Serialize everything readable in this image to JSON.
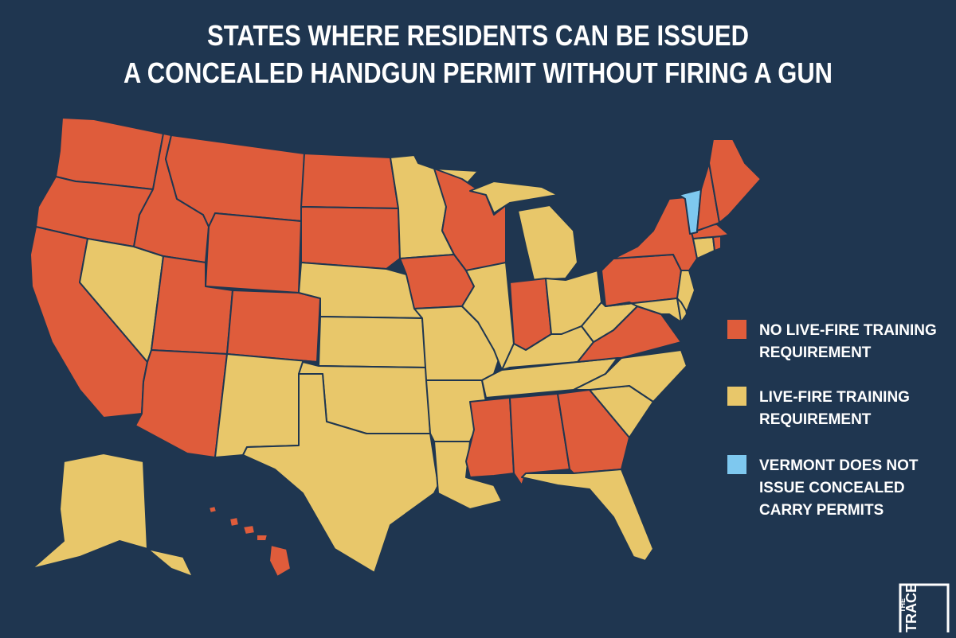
{
  "title": {
    "lines": [
      "STATES WHERE RESIDENTS CAN BE ISSUED",
      "A CONCEALED HANDGUN PERMIT WITHOUT FIRING A GUN"
    ]
  },
  "legend": {
    "items": [
      {
        "color": "#df5c3b",
        "label_lines": [
          "NO LIVE-FIRE TRAINING",
          "REQUIREMENT"
        ]
      },
      {
        "color": "#e8c76a",
        "label_lines": [
          "LIVE-FIRE TRAINING",
          "REQUIREMENT"
        ]
      },
      {
        "color": "#7ec8ef",
        "label_lines": [
          "VERMONT DOES NOT",
          "ISSUE CONCEALED",
          "CARRY PERMITS"
        ]
      }
    ]
  },
  "logo": {
    "small": "THE",
    "large": "TRACE"
  }
}
